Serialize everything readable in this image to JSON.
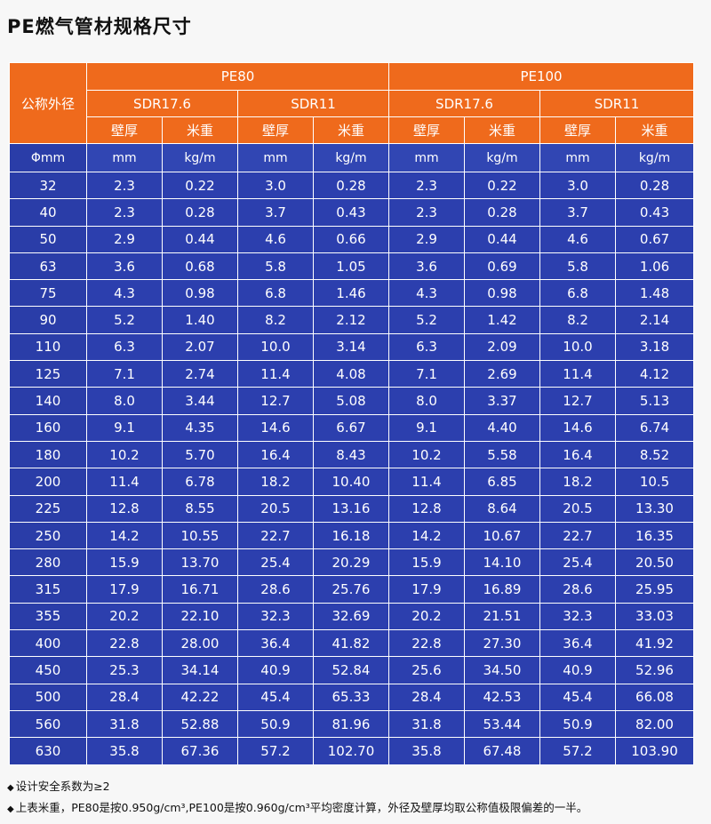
{
  "title": "PE燃气管材规格尺寸",
  "header": {
    "corner": "公称外径",
    "grades": [
      "PE80",
      "PE100"
    ],
    "sdr": [
      "SDR17.6",
      "SDR11",
      "SDR17.6",
      "SDR11"
    ],
    "wall": "壁厚",
    "weight": "米重"
  },
  "units": {
    "dn": "Φmm",
    "wall": "mm",
    "weight": "kg/m"
  },
  "rows": [
    {
      "dn": "32",
      "c": [
        "2.3",
        "0.22",
        "3.0",
        "0.28",
        "2.3",
        "0.22",
        "3.0",
        "0.28"
      ]
    },
    {
      "dn": "40",
      "c": [
        "2.3",
        "0.28",
        "3.7",
        "0.43",
        "2.3",
        "0.28",
        "3.7",
        "0.43"
      ]
    },
    {
      "dn": "50",
      "c": [
        "2.9",
        "0.44",
        "4.6",
        "0.66",
        "2.9",
        "0.44",
        "4.6",
        "0.67"
      ]
    },
    {
      "dn": "63",
      "c": [
        "3.6",
        "0.68",
        "5.8",
        "1.05",
        "3.6",
        "0.69",
        "5.8",
        "1.06"
      ]
    },
    {
      "dn": "75",
      "c": [
        "4.3",
        "0.98",
        "6.8",
        "1.46",
        "4.3",
        "0.98",
        "6.8",
        "1.48"
      ]
    },
    {
      "dn": "90",
      "c": [
        "5.2",
        "1.40",
        "8.2",
        "2.12",
        "5.2",
        "1.42",
        "8.2",
        "2.14"
      ]
    },
    {
      "dn": "110",
      "c": [
        "6.3",
        "2.07",
        "10.0",
        "3.14",
        "6.3",
        "2.09",
        "10.0",
        "3.18"
      ]
    },
    {
      "dn": "125",
      "c": [
        "7.1",
        "2.74",
        "11.4",
        "4.08",
        "7.1",
        "2.69",
        "11.4",
        "4.12"
      ]
    },
    {
      "dn": "140",
      "c": [
        "8.0",
        "3.44",
        "12.7",
        "5.08",
        "8.0",
        "3.37",
        "12.7",
        "5.13"
      ]
    },
    {
      "dn": "160",
      "c": [
        "9.1",
        "4.35",
        "14.6",
        "6.67",
        "9.1",
        "4.40",
        "14.6",
        "6.74"
      ]
    },
    {
      "dn": "180",
      "c": [
        "10.2",
        "5.70",
        "16.4",
        "8.43",
        "10.2",
        "5.58",
        "16.4",
        "8.52"
      ]
    },
    {
      "dn": "200",
      "c": [
        "11.4",
        "6.78",
        "18.2",
        "10.40",
        "11.4",
        "6.85",
        "18.2",
        "10.5"
      ]
    },
    {
      "dn": "225",
      "c": [
        "12.8",
        "8.55",
        "20.5",
        "13.16",
        "12.8",
        "8.64",
        "20.5",
        "13.30"
      ]
    },
    {
      "dn": "250",
      "c": [
        "14.2",
        "10.55",
        "22.7",
        "16.18",
        "14.2",
        "10.67",
        "22.7",
        "16.35"
      ]
    },
    {
      "dn": "280",
      "c": [
        "15.9",
        "13.70",
        "25.4",
        "20.29",
        "15.9",
        "14.10",
        "25.4",
        "20.50"
      ]
    },
    {
      "dn": "315",
      "c": [
        "17.9",
        "16.71",
        "28.6",
        "25.76",
        "17.9",
        "16.89",
        "28.6",
        "25.95"
      ]
    },
    {
      "dn": "355",
      "c": [
        "20.2",
        "22.10",
        "32.3",
        "32.69",
        "20.2",
        "21.51",
        "32.3",
        "33.03"
      ]
    },
    {
      "dn": "400",
      "c": [
        "22.8",
        "28.00",
        "36.4",
        "41.82",
        "22.8",
        "27.30",
        "36.4",
        "41.92"
      ]
    },
    {
      "dn": "450",
      "c": [
        "25.3",
        "34.14",
        "40.9",
        "52.84",
        "25.6",
        "34.50",
        "40.9",
        "52.96"
      ]
    },
    {
      "dn": "500",
      "c": [
        "28.4",
        "42.22",
        "45.4",
        "65.33",
        "28.4",
        "42.53",
        "45.4",
        "66.08"
      ]
    },
    {
      "dn": "560",
      "c": [
        "31.8",
        "52.88",
        "50.9",
        "81.96",
        "31.8",
        "53.44",
        "50.9",
        "82.00"
      ]
    },
    {
      "dn": "630",
      "c": [
        "35.8",
        "67.36",
        "57.2",
        "102.70",
        "35.8",
        "67.48",
        "57.2",
        "103.90"
      ]
    }
  ],
  "notes": {
    "bullet": "◆",
    "items": [
      "设计安全系数为≥2",
      "上表米重，PE80是按0.950g/cm³,PE100是按0.960g/cm³平均密度计算，外径及壁厚均取公称值极限偏差的一半。"
    ]
  },
  "colors": {
    "header_orange": "#ef6a1c",
    "body_blue": "#2c3fae",
    "grid_white": "#ffffff"
  }
}
